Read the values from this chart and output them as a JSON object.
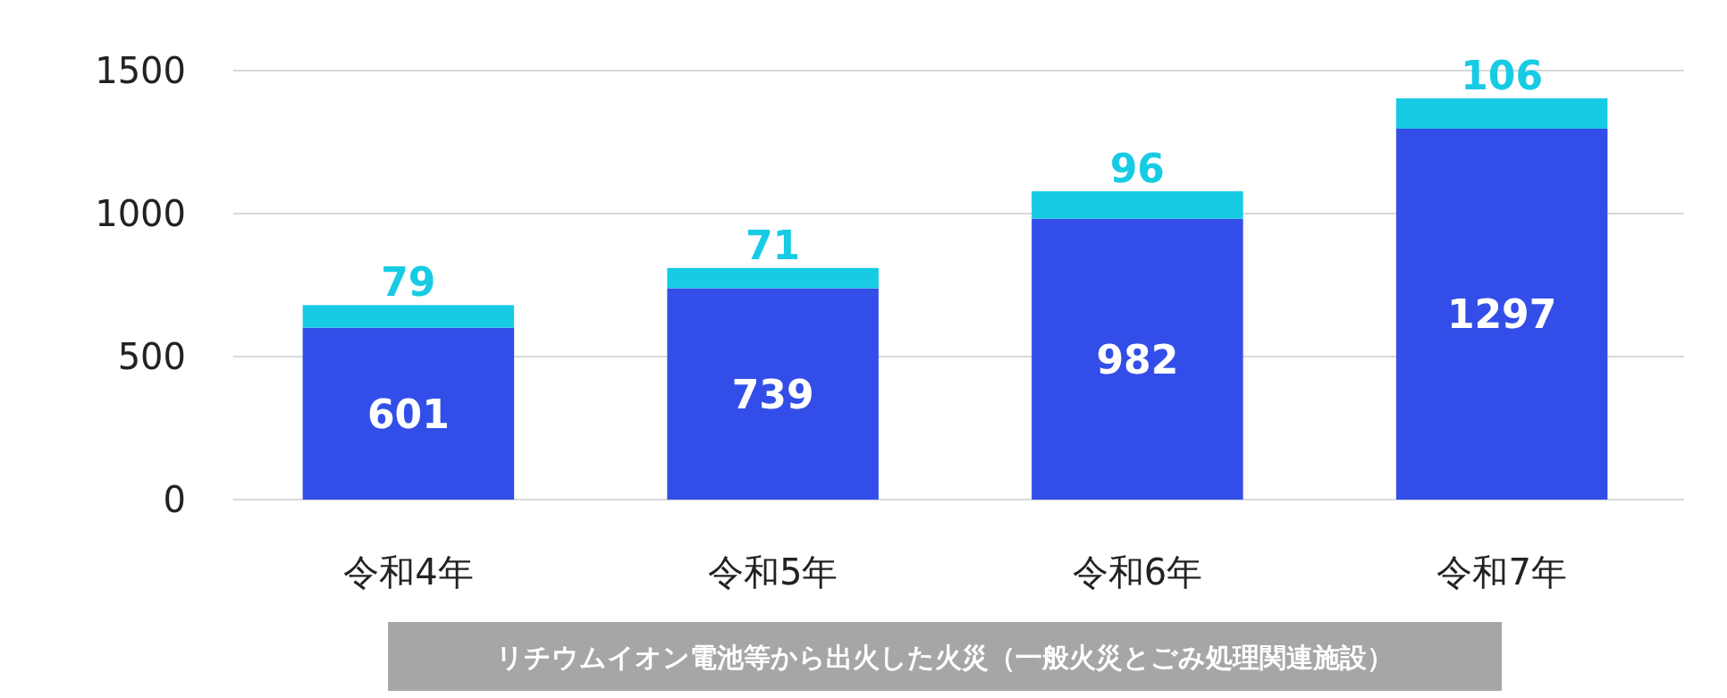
{
  "chart_data": {
    "type": "bar",
    "categories": [
      "令和4年",
      "令和5年",
      "令和6年",
      "令和7年"
    ],
    "series": [
      {
        "color": "#334ee8",
        "values": [
          601,
          739,
          982,
          1297
        ]
      },
      {
        "color": "#17cbe4",
        "values": [
          79,
          71,
          96,
          106
        ]
      }
    ],
    "stacked": true,
    "ylim": [
      0,
      1500
    ],
    "yticks": [
      0,
      500,
      1000,
      1500
    ],
    "grid": "y",
    "data_labels": true,
    "annotations": [
      "リチウムイオン電池等から出火した火災（一般火災とごみ処理関連施設）"
    ]
  }
}
